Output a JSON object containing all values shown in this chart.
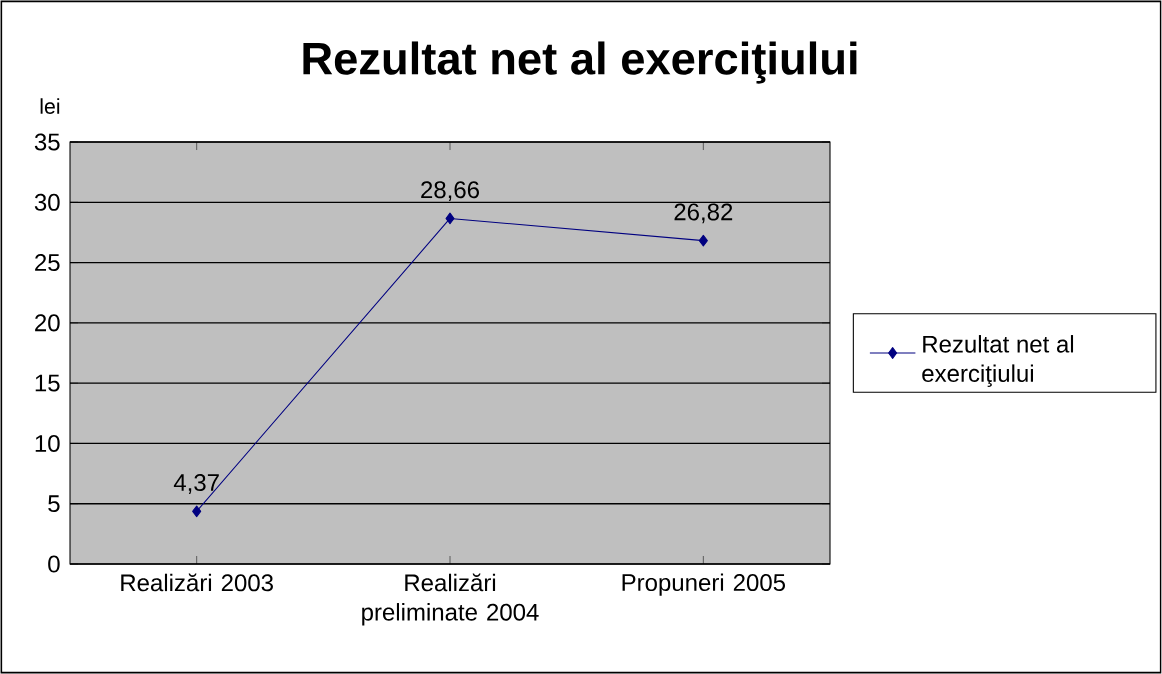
{
  "chart_data": {
    "type": "line",
    "title": "Rezultat net al exerciţiului",
    "ylabel": "lei",
    "categories": [
      "Realizări 2003",
      "Realizări preliminate 2004",
      "Propuneri 2005"
    ],
    "series": [
      {
        "name": "Rezultat net al exerciţiului",
        "color": "#000080",
        "values": [
          4.37,
          28.66,
          26.82
        ],
        "value_labels": [
          "4,37",
          "28,66",
          "26,82"
        ]
      }
    ],
    "ylim": [
      0,
      35
    ],
    "yticks": [
      0,
      5,
      10,
      15,
      20,
      25,
      30,
      35
    ],
    "grid": "y",
    "legend": "right",
    "marker": "diamond",
    "line_style": "solid"
  }
}
